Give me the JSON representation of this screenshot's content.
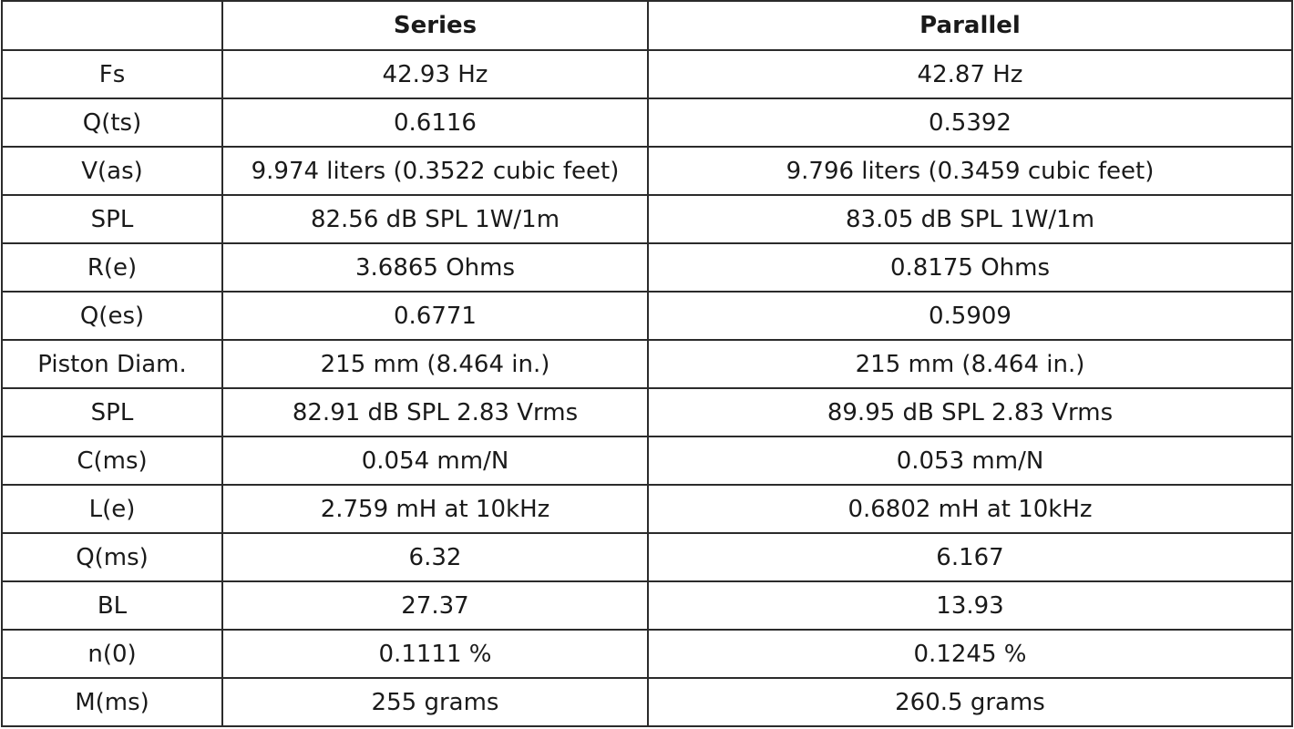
{
  "table": {
    "headers": [
      "",
      "Series",
      "Parallel"
    ],
    "rows": [
      [
        "Fs",
        "42.93 Hz",
        "42.87 Hz"
      ],
      [
        "Q(ts)",
        "0.6116",
        "0.5392"
      ],
      [
        "V(as)",
        "9.974 liters (0.3522 cubic feet)",
        "9.796 liters (0.3459 cubic feet)"
      ],
      [
        "SPL",
        "82.56 dB SPL 1W/1m",
        "83.05 dB SPL 1W/1m"
      ],
      [
        "R(e)",
        "3.6865 Ohms",
        "0.8175 Ohms"
      ],
      [
        "Q(es)",
        "0.6771",
        "0.5909"
      ],
      [
        "Piston Diam.",
        "215 mm (8.464 in.)",
        "215 mm (8.464 in.)"
      ],
      [
        "SPL",
        "82.91 dB SPL 2.83 Vrms",
        "89.95 dB SPL 2.83 Vrms"
      ],
      [
        "C(ms)",
        "0.054 mm/N",
        "0.053 mm/N"
      ],
      [
        "L(e)",
        "2.759 mH at 10kHz",
        "0.6802 mH at 10kHz"
      ],
      [
        "Q(ms)",
        "6.32",
        "6.167"
      ],
      [
        "BL",
        "27.37",
        "13.93"
      ],
      [
        "n(0)",
        "0.1111 %",
        "0.1245 %"
      ],
      [
        "M(ms)",
        "255 grams",
        "260.5 grams"
      ]
    ]
  }
}
